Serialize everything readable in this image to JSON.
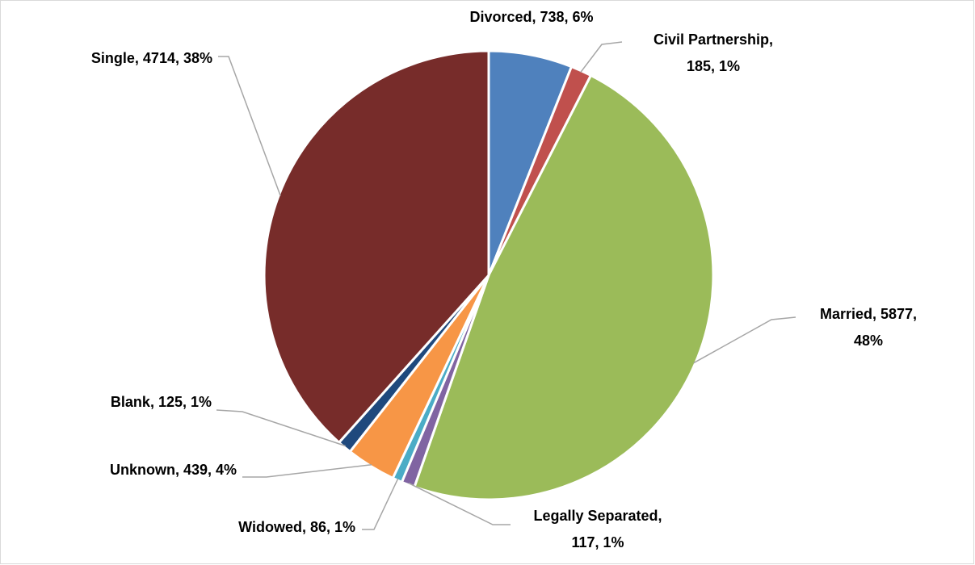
{
  "chart_data": {
    "type": "pie",
    "values": [
      738,
      185,
      5877,
      117,
      86,
      439,
      125,
      4714
    ],
    "value_labels": [
      [
        "Divorced, 738, 6%"
      ],
      [
        "Civil Partnership,",
        "185, 1%"
      ],
      [
        "Married, 5877,",
        "48%"
      ],
      [
        "Legally Separated,",
        "117, 1%"
      ],
      [
        "Widowed, 86, 1%"
      ],
      [
        "Unknown, 439, 4%"
      ],
      [
        "Blank, 125, 1%"
      ],
      [
        "Single, 4714, 38%"
      ]
    ],
    "colors": [
      "#4f81bd",
      "#c0504d",
      "#9bbb59",
      "#8064a2",
      "#4bacc6",
      "#f79646",
      "#1f497d",
      "#772c2a"
    ]
  }
}
